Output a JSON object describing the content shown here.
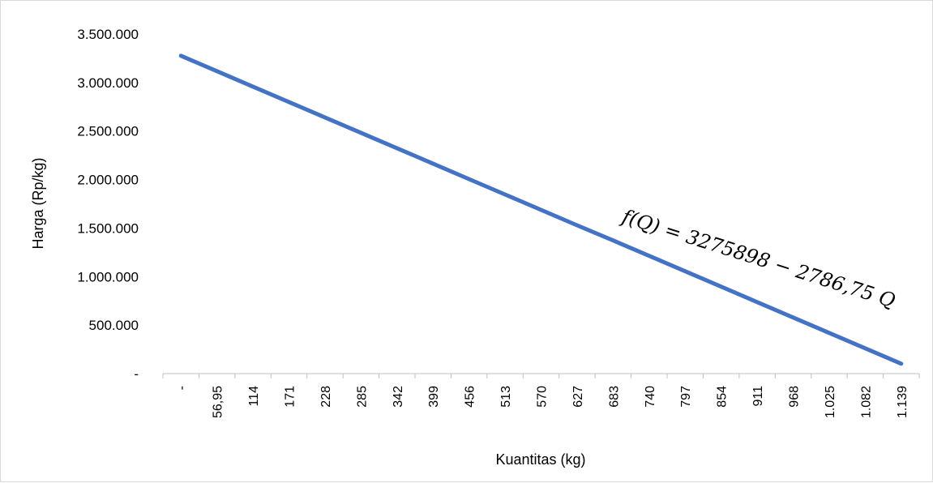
{
  "chart_data": {
    "type": "line",
    "title": "",
    "xlabel": "Kuantitas (kg)",
    "ylabel": "Harga (Rp/kg)",
    "ylim": [
      0,
      3500000
    ],
    "y_ticks": [
      0,
      500000,
      1000000,
      1500000,
      2000000,
      2500000,
      3000000,
      3500000
    ],
    "y_tick_labels": [
      "-",
      "500.000",
      "1.000.000",
      "1.500.000",
      "2.000.000",
      "2.500.000",
      "3.000.000",
      "3.500.000"
    ],
    "categories": [
      "-",
      "56,95",
      "114",
      "171",
      "228",
      "285",
      "342",
      "399",
      "456",
      "513",
      "570",
      "627",
      "683",
      "740",
      "797",
      "854",
      "911",
      "968",
      "1.025",
      "1.082",
      "1.139"
    ],
    "x": [
      0,
      56.95,
      114,
      171,
      228,
      285,
      342,
      399,
      456,
      513,
      570,
      627,
      683,
      740,
      797,
      854,
      911,
      968,
      1025,
      1082,
      1139
    ],
    "series": [
      {
        "values": [
          3275898,
          3117192,
          2958209,
          2799364,
          2640519,
          2481674,
          2322829,
          2163984,
          2005139,
          1846294,
          1687450,
          1528605,
          1372546,
          1213701,
          1054856,
          896011,
          737166,
          578321,
          419476,
          260631,
          101786
        ],
        "color": "#4472c4"
      }
    ],
    "annotation": "f(Q) = 3275898 − 2786,75 Q",
    "grid": false,
    "legend": "none"
  }
}
